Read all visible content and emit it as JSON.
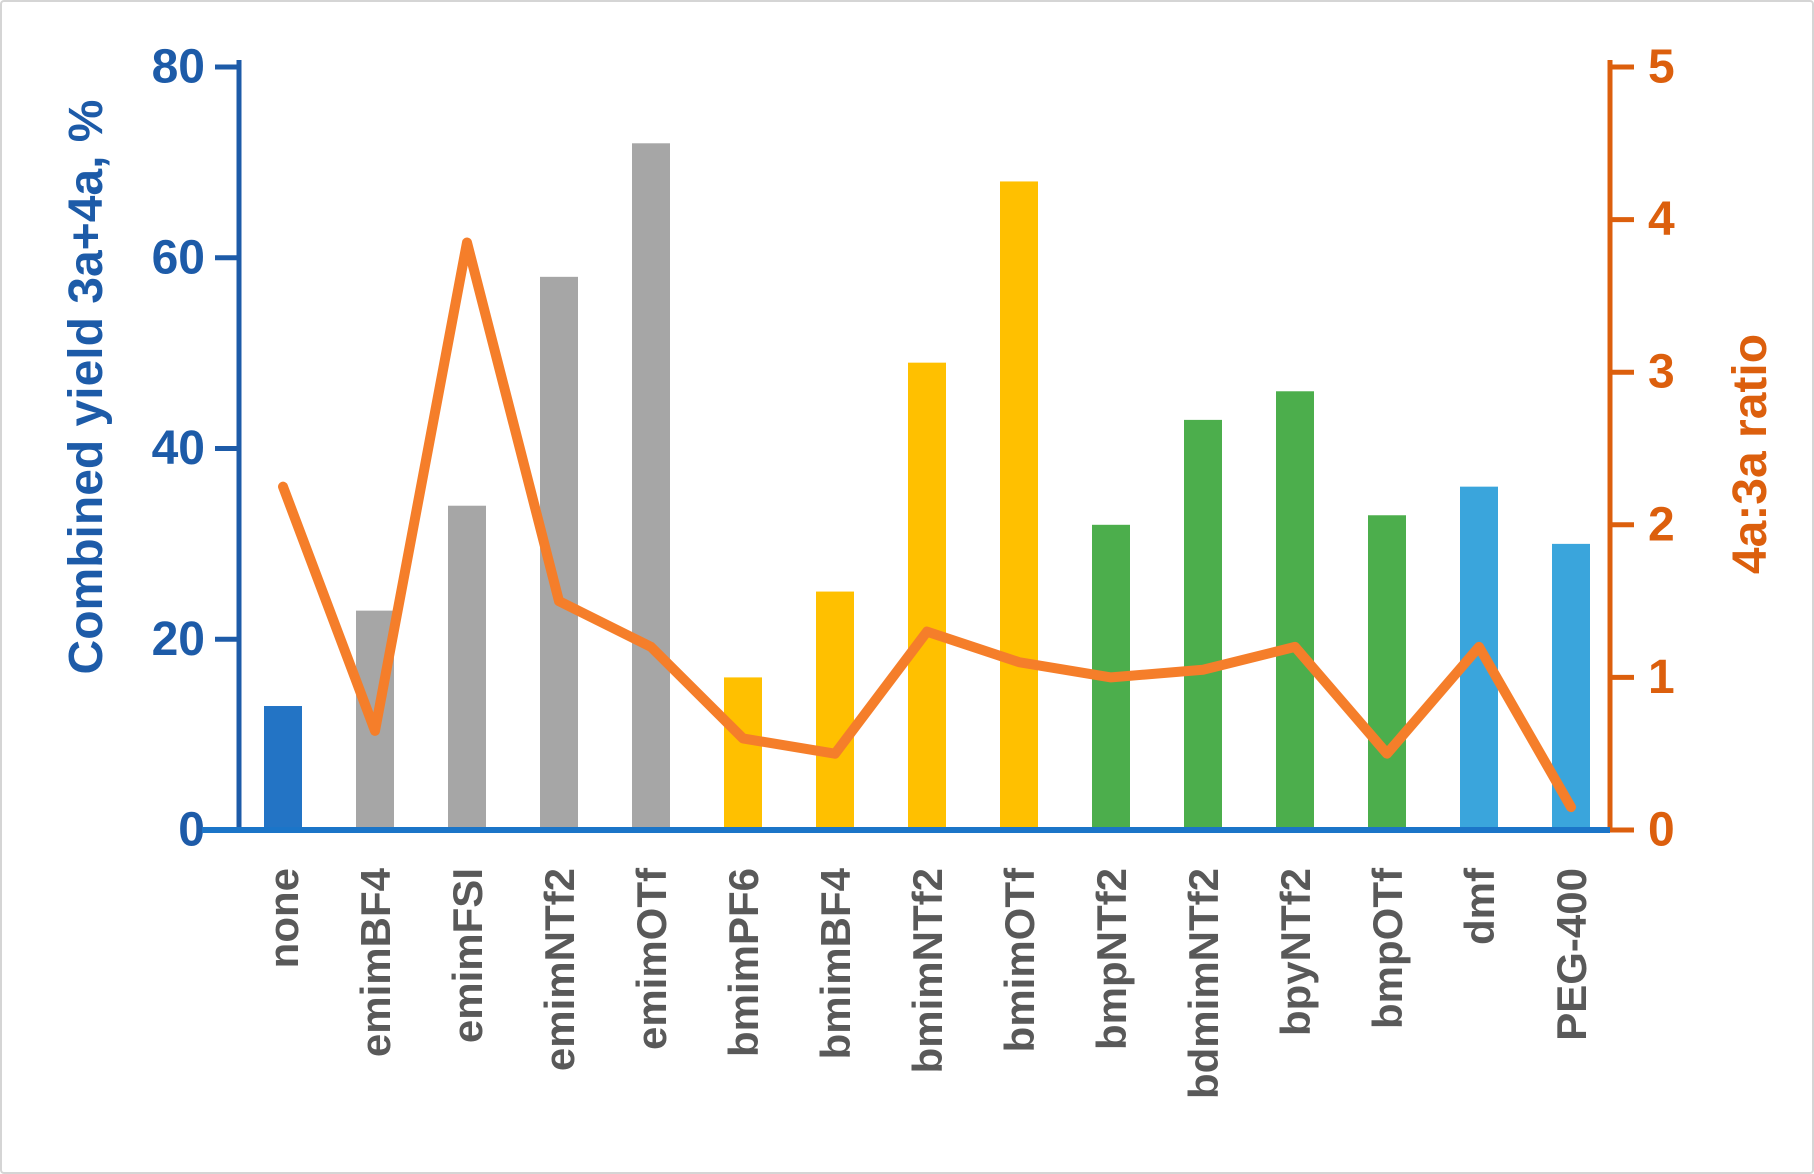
{
  "figure": {
    "background": "#FFFFFF",
    "border_color": "#D5D5D5"
  },
  "chart_data": {
    "type": "combo",
    "categories": [
      "none",
      "emimBF4",
      "emimFSI",
      "emimNTf2",
      "emimOTf",
      "bmimPF6",
      "bmimBF4",
      "bmimNTf2",
      "bmimOTf",
      "bmpNTf2",
      "bdmimNTf2",
      "bpyNTf2",
      "bmpOTf",
      "dmf",
      "PEG-400"
    ],
    "series": [
      {
        "name": "Combined yield 3a+4a, %",
        "type": "bar",
        "axis": "left",
        "values": [
          13,
          23,
          34,
          58,
          72,
          16,
          25,
          49,
          68,
          32,
          43,
          46,
          33,
          36,
          30
        ]
      },
      {
        "name": "4a:3a ratio",
        "type": "line",
        "axis": "right",
        "values": [
          2.25,
          0.65,
          3.85,
          1.5,
          1.2,
          0.6,
          0.5,
          1.3,
          1.1,
          1.0,
          1.05,
          1.2,
          0.5,
          1.2,
          0.15
        ]
      }
    ],
    "left_axis": {
      "label": "Combined yield 3a+4a, %",
      "min": 0,
      "max": 80,
      "ticks": [
        "0",
        "20",
        "40",
        "60",
        "80"
      ],
      "tick_values": [
        0,
        20,
        40,
        60,
        80
      ]
    },
    "right_axis": {
      "label": "4a:3a ratio",
      "min": 0,
      "max": 5,
      "ticks": [
        "0",
        "1",
        "2",
        "3",
        "4",
        "5"
      ],
      "tick_values": [
        0,
        1,
        2,
        3,
        4,
        5
      ]
    },
    "grid": false,
    "legend": false,
    "bar_colors": [
      "#2374C5",
      "#A6A6A6",
      "#A6A6A6",
      "#A6A6A6",
      "#A6A6A6",
      "#FFC000",
      "#FFC000",
      "#FFC000",
      "#FFC000",
      "#4CAE4C",
      "#4CAE4C",
      "#4CAE4C",
      "#4CAE4C",
      "#3AA5DC",
      "#3AA5DC"
    ]
  },
  "colors": {
    "left_axis_blue": "#1D5BA8",
    "baseline_blue": "#1B75C8",
    "right_axis_orange": "#DC5F0D",
    "line_orange": "#F57E2A",
    "x_label_gray": "#595959"
  }
}
